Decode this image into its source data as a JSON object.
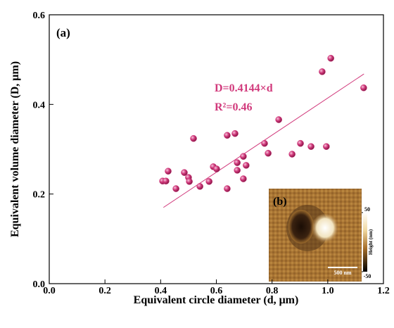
{
  "chart_data": {
    "type": "scatter",
    "panel_label": "(a)",
    "xlabel": "Equivalent circle diameter (d, μm)",
    "ylabel": "Equivalent volume diameter (D, μm)",
    "x": [
      0.407,
      0.419,
      0.427,
      0.455,
      0.485,
      0.5,
      0.503,
      0.518,
      0.541,
      0.574,
      0.589,
      0.601,
      0.639,
      0.639,
      0.667,
      0.675,
      0.675,
      0.697,
      0.697,
      0.707,
      0.773,
      0.786,
      0.824,
      0.872,
      0.902,
      0.94,
      0.995,
      0.98,
      1.011,
      1.129
    ],
    "values": [
      0.229,
      0.229,
      0.251,
      0.212,
      0.248,
      0.237,
      0.228,
      0.324,
      0.217,
      0.228,
      0.261,
      0.256,
      0.331,
      0.212,
      0.335,
      0.27,
      0.253,
      0.284,
      0.234,
      0.264,
      0.313,
      0.291,
      0.366,
      0.289,
      0.313,
      0.306,
      0.306,
      0.473,
      0.503,
      0.437
    ],
    "color": "#d13a7c",
    "fit_line": {
      "x": [
        0.41,
        1.13
      ],
      "y": [
        0.17,
        0.468
      ],
      "color": "#d13a7c"
    },
    "annotations": [
      "D=0.4144×d",
      "R²=0.46"
    ],
    "xlim": [
      0,
      1.2
    ],
    "ylim": [
      0,
      0.6
    ],
    "xticks": [
      {
        "value": 0,
        "label": "0.0"
      },
      0.2,
      0.4,
      0.6,
      0.8,
      {
        "value": 1,
        "label": "1.0"
      },
      1.2
    ],
    "yticks": [
      {
        "value": 0,
        "label": "0.0"
      },
      0.2,
      0.4,
      0.6
    ],
    "inset": {
      "label": "(b)",
      "scale_bar": "500 nm",
      "colorbar_label": "Height (nm)",
      "colorbar_ticks": [
        50,
        -50
      ]
    }
  }
}
